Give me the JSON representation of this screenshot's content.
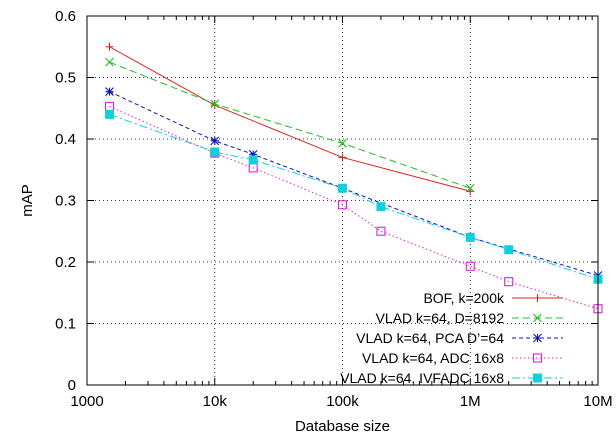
{
  "chart_data": {
    "type": "line",
    "title": "",
    "xlabel": "Database size",
    "ylabel": "mAP",
    "x_scale": "log",
    "xlim": [
      1000,
      10000000
    ],
    "ylim": [
      0,
      0.6
    ],
    "grid": true,
    "legend_position": "lower-right",
    "x_ticks": [
      {
        "value": 1000,
        "label": "1000"
      },
      {
        "value": 10000,
        "label": "10k"
      },
      {
        "value": 100000,
        "label": "100k"
      },
      {
        "value": 1000000,
        "label": "1M"
      },
      {
        "value": 10000000,
        "label": "10M"
      }
    ],
    "y_ticks": [
      {
        "value": 0,
        "label": "0"
      },
      {
        "value": 0.1,
        "label": "0.1"
      },
      {
        "value": 0.2,
        "label": "0.2"
      },
      {
        "value": 0.3,
        "label": "0.3"
      },
      {
        "value": 0.4,
        "label": "0.4"
      },
      {
        "value": 0.5,
        "label": "0.5"
      },
      {
        "value": 0.6,
        "label": "0.6"
      }
    ],
    "series": [
      {
        "name": "BOF, k=200k",
        "color": "#e02020",
        "dash": "solid",
        "marker": "plus",
        "x": [
          1500,
          10000,
          100000,
          1000000
        ],
        "y": [
          0.55,
          0.455,
          0.37,
          0.315
        ]
      },
      {
        "name": "VLAD k=64, D=8192",
        "color": "#20c020",
        "dash": "dashed",
        "marker": "cross",
        "x": [
          1500,
          10000,
          100000,
          1000000
        ],
        "y": [
          0.525,
          0.457,
          0.393,
          0.32
        ]
      },
      {
        "name": "VLAD k=64, PCA D’=64",
        "color": "#1010c0",
        "dash": "short-dashed",
        "marker": "star",
        "x": [
          1500,
          10000,
          20000,
          100000,
          1000000,
          10000000
        ],
        "y": [
          0.477,
          0.397,
          0.375,
          0.32,
          0.24,
          0.178
        ]
      },
      {
        "name": "VLAD k=64, ADC 16x8",
        "color": "#e020e0",
        "dash": "dotted",
        "marker": "open-square",
        "x": [
          1500,
          10000,
          20000,
          100000,
          200000,
          1000000,
          2000000,
          10000000
        ],
        "y": [
          0.453,
          0.377,
          0.353,
          0.293,
          0.25,
          0.193,
          0.168,
          0.124
        ]
      },
      {
        "name": "VLAD k=64, IVFADC 16x8",
        "color": "#10d0e0",
        "dash": "dash-dot",
        "marker": "filled-square",
        "x": [
          1500,
          10000,
          20000,
          100000,
          200000,
          1000000,
          2000000,
          10000000
        ],
        "y": [
          0.44,
          0.379,
          0.366,
          0.32,
          0.29,
          0.24,
          0.22,
          0.172
        ]
      }
    ]
  }
}
